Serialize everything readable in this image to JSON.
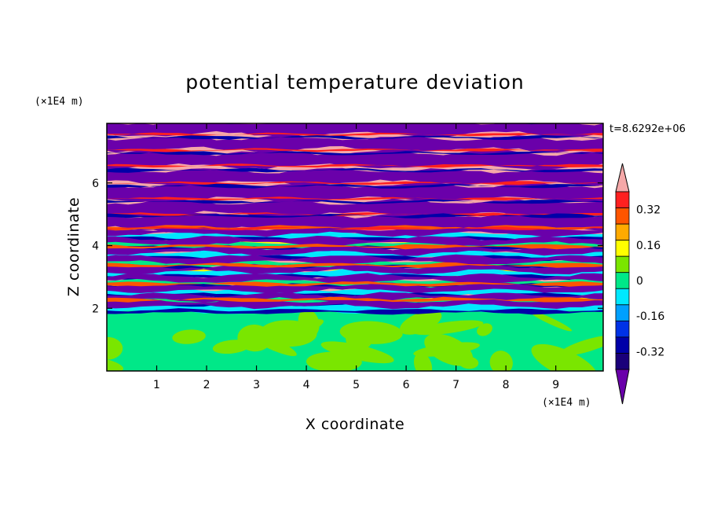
{
  "chart_data": {
    "type": "heatmap",
    "title": "potential temperature deviation",
    "xlabel": "X coordinate",
    "ylabel": "Z coordinate",
    "x_unit": "(×1E4 m)",
    "y_unit": "(×1E4 m)",
    "time_label": "t=8.6292e+06",
    "xlim": [
      0,
      9.95
    ],
    "ylim": [
      0,
      7.9
    ],
    "x_ticks": [
      1,
      2,
      3,
      4,
      5,
      6,
      7,
      8,
      9
    ],
    "y_ticks": [
      2,
      4,
      6
    ],
    "colorbar": {
      "levels": [
        -0.4,
        -0.32,
        -0.24,
        -0.16,
        -0.08,
        0,
        0.08,
        0.16,
        0.24,
        0.32,
        0.4
      ],
      "colors": [
        "#1a007a",
        "#0000a8",
        "#0032e6",
        "#00a0ff",
        "#00e8ff",
        "#00e888",
        "#7ae600",
        "#ffff00",
        "#ffaa00",
        "#ff5500",
        "#ff2020"
      ],
      "under_color": "#6a00aa",
      "over_color": "#f5a8a8",
      "tick_values": [
        0.32,
        0.16,
        0,
        -0.16,
        -0.32
      ],
      "tick_labels": [
        "0.32",
        "0.16",
        "0",
        "-0.16",
        "-0.32"
      ]
    },
    "field": {
      "lower_layer_top": 2.0,
      "lower_layer_values": [
        0,
        0.08
      ],
      "band_pattern": "alternating horizontal layers of over (+) and under (−) values above z=2, with mixed intermediate values between z=2 and z=4.5"
    }
  }
}
